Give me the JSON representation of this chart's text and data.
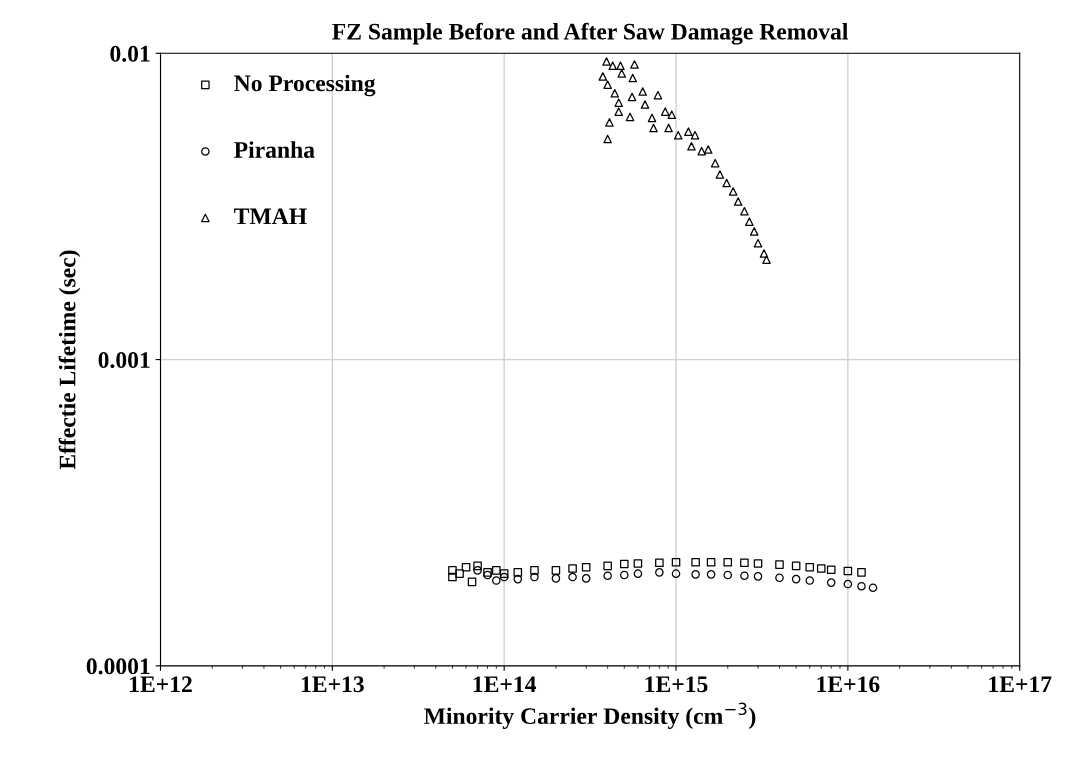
{
  "chart_data": {
    "type": "scatter",
    "title": "FZ Sample Before and After Saw Damage Removal",
    "xlabel": "Minority Carrier Density (cm$^{−3}$)",
    "ylabel": "Effectie Lifetime (sec)",
    "log": "xy",
    "grid": true,
    "legend": "top left",
    "xlim": [
      1000000000000.0,
      1e+17
    ],
    "xticks": [
      {
        "value": 1000000000000.0,
        "label": "1E+12"
      },
      {
        "value": 10000000000000.0,
        "label": "1E+13"
      },
      {
        "value": 100000000000000.0,
        "label": "1E+14"
      },
      {
        "value": 1000000000000000.0,
        "label": "1E+15"
      },
      {
        "value": 1e+16,
        "label": "1E+16"
      },
      {
        "value": 1e+17,
        "label": "1E+17"
      }
    ],
    "ylim": [
      0.0001,
      0.01
    ],
    "yticks": [
      0.0001,
      0.001,
      0.01
    ],
    "series": [
      {
        "name": "No Processing",
        "color": "#000000",
        "marker": "square",
        "x": [
          50000000000000.0,
          50000000000000.0,
          55000000000000.0,
          60000000000000.0,
          65000000000000.0,
          70000000000000.0,
          80000000000000.0,
          90000000000000.0,
          100000000000000.0,
          120000000000000.0,
          150000000000000.0,
          200000000000000.0,
          250000000000000.0,
          300000000000000.0,
          400000000000000.0,
          500000000000000.0,
          600000000000000.0,
          800000000000000.0,
          1000000000000000.0,
          1300000000000000.0,
          1600000000000000.0,
          2000000000000000.0,
          2500000000000000.0,
          3000000000000000.0,
          4000000000000000.0,
          5000000000000000.0,
          6000000000000000.0,
          7000000000000000.0,
          8000000000000000.0,
          1e+16,
          1.2e+16
        ],
        "values": [
          0.000205,
          0.000195,
          0.0002,
          0.00021,
          0.000188,
          0.000212,
          0.000202,
          0.000205,
          0.0002,
          0.000202,
          0.000205,
          0.000205,
          0.000208,
          0.00021,
          0.000212,
          0.000215,
          0.000216,
          0.000217,
          0.000218,
          0.000218,
          0.000218,
          0.000218,
          0.000217,
          0.000216,
          0.000214,
          0.000212,
          0.00021,
          0.000208,
          0.000206,
          0.000204,
          0.000202
        ]
      },
      {
        "name": "Piranha",
        "color": "#000000",
        "marker": "circle",
        "x": [
          70000000000000.0,
          80000000000000.0,
          90000000000000.0,
          100000000000000.0,
          120000000000000.0,
          150000000000000.0,
          200000000000000.0,
          250000000000000.0,
          300000000000000.0,
          400000000000000.0,
          500000000000000.0,
          600000000000000.0,
          800000000000000.0,
          1000000000000000.0,
          1300000000000000.0,
          1600000000000000.0,
          2000000000000000.0,
          2500000000000000.0,
          3000000000000000.0,
          4000000000000000.0,
          5000000000000000.0,
          6000000000000000.0,
          8000000000000000.0,
          1e+16,
          1.2e+16,
          1.4e+16
        ],
        "values": [
          0.000205,
          0.000198,
          0.00019,
          0.000195,
          0.000192,
          0.000195,
          0.000193,
          0.000195,
          0.000193,
          0.000197,
          0.000198,
          0.0002,
          0.000202,
          0.0002,
          0.000199,
          0.000199,
          0.000198,
          0.000197,
          0.000196,
          0.000194,
          0.000192,
          0.00019,
          0.000187,
          0.000185,
          0.000182,
          0.00018
        ]
      },
      {
        "name": "TMAH",
        "color": "#000000",
        "marker": "triangle",
        "x": [
          394000000000000.0,
          428000000000000.0,
          475000000000000.0,
          573000000000000.0,
          483000000000000.0,
          560000000000000.0,
          375000000000000.0,
          400000000000000.0,
          440000000000000.0,
          464000000000000.0,
          464000000000000.0,
          410000000000000.0,
          400000000000000.0,
          555000000000000.0,
          640000000000000.0,
          785000000000000.0,
          660000000000000.0,
          540000000000000.0,
          725000000000000.0,
          740000000000000.0,
          865000000000000.0,
          945000000000000.0,
          905000000000000.0,
          1030000000000000.0,
          1180000000000000.0,
          1290000000000000.0,
          1230000000000000.0,
          1410000000000000.0,
          1540000000000000.0,
          1690000000000000.0,
          1800000000000000.0,
          1970000000000000.0,
          2150000000000000.0,
          2300000000000000.0,
          2500000000000000.0,
          2670000000000000.0,
          2850000000000000.0,
          3000000000000000.0,
          3250000000000000.0,
          3360000000000000.0
        ],
        "values": [
          0.0094,
          0.0091,
          0.0091,
          0.0092,
          0.0086,
          0.0083,
          0.0084,
          0.0079,
          0.0074,
          0.0069,
          0.00645,
          0.00595,
          0.00525,
          0.0072,
          0.0075,
          0.0073,
          0.0068,
          0.0062,
          0.00615,
          0.0057,
          0.00645,
          0.0063,
          0.0057,
          0.0054,
          0.00555,
          0.0054,
          0.00497,
          0.00479,
          0.00485,
          0.00438,
          0.00402,
          0.00377,
          0.00354,
          0.00328,
          0.00305,
          0.00282,
          0.00262,
          0.0024,
          0.00222,
          0.00212
        ]
      }
    ]
  }
}
